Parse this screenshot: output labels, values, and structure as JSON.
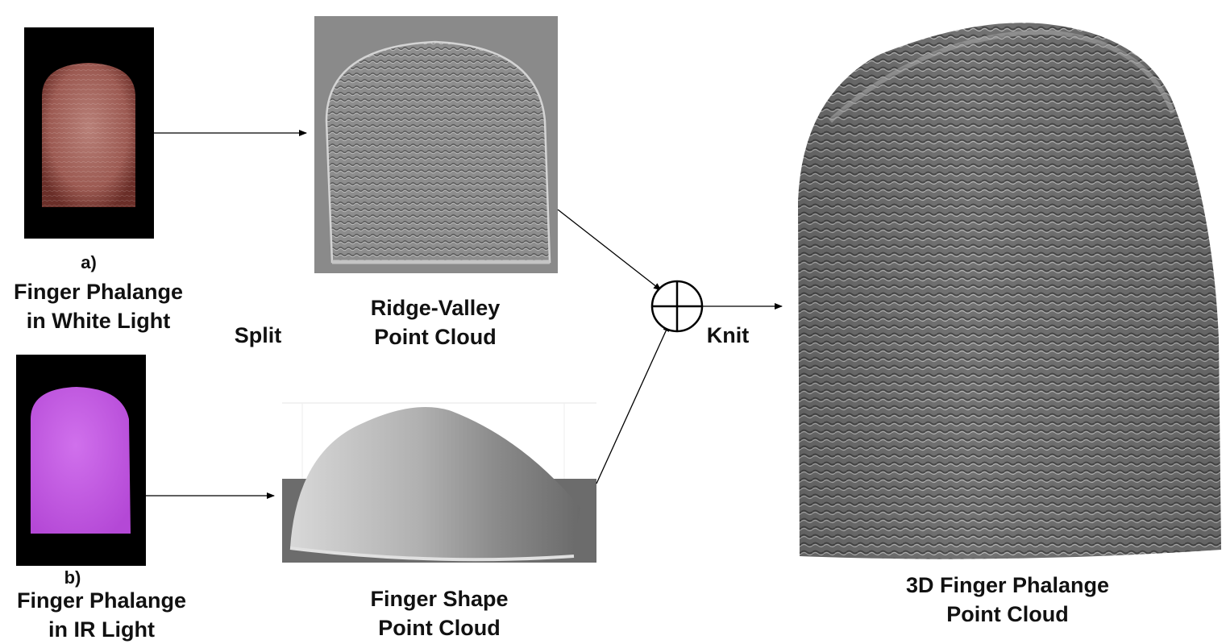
{
  "labels": {
    "a_letter": "a)",
    "a_line1": "Finger Phalange",
    "a_line2": "in White Light",
    "b_letter": "b)",
    "b_line1": "Finger Phalange",
    "b_line2": "in IR Light",
    "split": "Split",
    "ridge_line1": "Ridge-Valley",
    "ridge_line2": "Point Cloud",
    "shape_line1": "Finger Shape",
    "shape_line2": "Point Cloud",
    "knit": "Knit",
    "result_line1": "3D Finger Phalange",
    "result_line2": "Point Cloud"
  },
  "colors": {
    "white_light_finger": "#a8645c",
    "ir_finger": "#c45ae0",
    "photo_background": "#000000",
    "ridge_panel": "#8a8a8a",
    "shape_gray": "#b5b5b5",
    "result_gray": "#6e6e6e",
    "arrow": "#000000"
  }
}
